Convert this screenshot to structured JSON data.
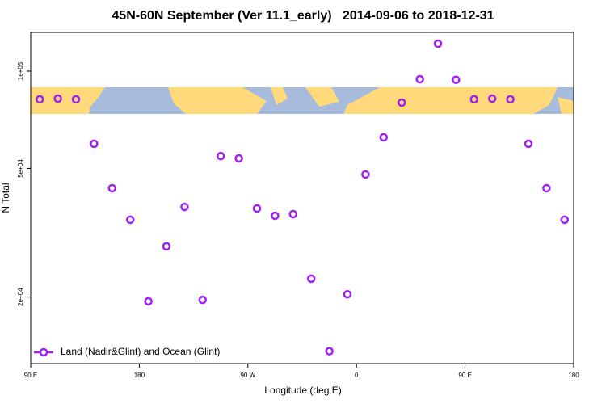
{
  "chart_data": {
    "type": "scatter",
    "title": "45N-60N September (Ver 11.1_early)   2014-09-06 to 2018-12-31",
    "x_label": "Longitude (deg E)",
    "y_label": "N Total",
    "xlim": [
      90,
      540
    ],
    "xticks": [
      {
        "value": 90,
        "label": "90 E"
      },
      180,
      {
        "value": 270,
        "label": "90 W"
      },
      {
        "value": 360,
        "label": "0"
      },
      {
        "value": 450,
        "label": "90 E"
      },
      {
        "value": 540,
        "label": "180"
      }
    ],
    "ylim": [
      12450,
      131800
    ],
    "yticks": [
      {
        "value": 20000,
        "label": "2e+04"
      },
      {
        "value": 50000,
        "label": "5e+04"
      },
      {
        "value": 100000,
        "label": "1e+05"
      }
    ],
    "y_scale": "log",
    "legend_position": "bottom-left",
    "series": [
      {
        "name": "Land (Nadir&Glint) and Ocean (Glint)",
        "color": "#a020f0",
        "x": [
          97.5,
          112.5,
          127.5,
          142.5,
          157.5,
          172.5,
          187.5,
          202.5,
          217.5,
          232.5,
          247.5,
          262.5,
          277.5,
          292.5,
          307.5,
          322.5,
          337.5,
          352.5,
          367.5,
          382.5,
          397.5,
          412.5,
          427.5,
          442.5,
          457.5,
          472.5,
          487.5,
          502.5,
          517.5,
          532.5
        ],
        "values": [
          81800,
          82200,
          81800,
          59600,
          43400,
          34700,
          19400,
          28700,
          38000,
          19600,
          54600,
          53700,
          37600,
          35700,
          36100,
          22800,
          13600,
          20400,
          47900,
          62400,
          79900,
          94400,
          121600,
          94000,
          81800,
          82200,
          81800,
          59600,
          43400,
          34700
        ]
      }
    ]
  }
}
